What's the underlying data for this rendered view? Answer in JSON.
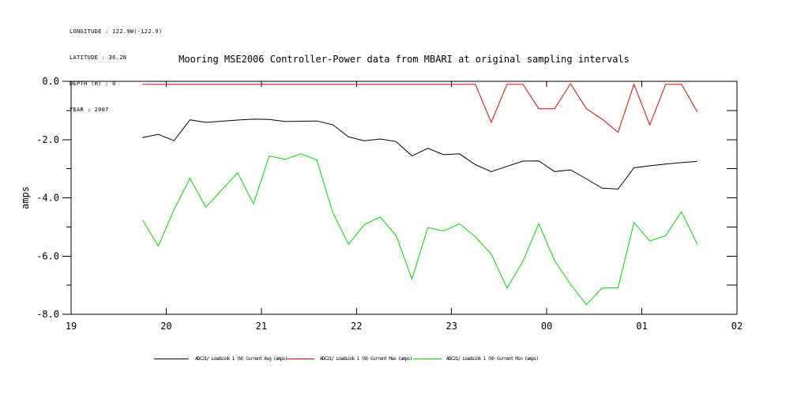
{
  "header": {
    "lines": [
      "LONGITUDE : 122.9W(-122.9)",
      "LATITUDE : 36.2N",
      "DEPTH (m) : 0",
      "YEAR : 2007"
    ]
  },
  "chart_data": {
    "type": "line",
    "title": "Mooring MSE2006 Controller-Power data from MBARI at original sampling intervals",
    "xlabel": "",
    "ylabel": "amps",
    "xlim": [
      19,
      26
    ],
    "ylim": [
      -8,
      0
    ],
    "grid": false,
    "legend_position": "bottom",
    "x_ticks": [
      {
        "value": 19,
        "label": "19"
      },
      {
        "value": 20,
        "label": "20"
      },
      {
        "value": 21,
        "label": "21"
      },
      {
        "value": 22,
        "label": "22"
      },
      {
        "value": 23,
        "label": "23"
      },
      {
        "value": 24,
        "label": "00"
      },
      {
        "value": 25,
        "label": "01"
      },
      {
        "value": 26,
        "label": "02"
      }
    ],
    "y_ticks": [
      {
        "value": 0,
        "label": "0.0"
      },
      {
        "value": -2,
        "label": "-2.0"
      },
      {
        "value": -4,
        "label": "-4.0"
      },
      {
        "value": -6,
        "label": "-6.0"
      },
      {
        "value": -8,
        "label": "-8.0"
      }
    ],
    "y_minor_ticks": [
      -1,
      -3,
      -5,
      -7
    ],
    "right_axis_ticks": [
      -1,
      -2,
      -3,
      -4,
      -5,
      -6,
      -7
    ],
    "x": [
      19.75,
      19.917,
      20.083,
      20.25,
      20.417,
      20.583,
      20.75,
      20.917,
      21.083,
      21.25,
      21.417,
      21.583,
      21.75,
      21.917,
      22.083,
      22.25,
      22.417,
      22.583,
      22.75,
      22.917,
      23.083,
      23.25,
      23.417,
      23.583,
      23.75,
      23.917,
      24.083,
      24.25,
      24.417,
      24.583,
      24.75,
      24.917,
      25.083,
      25.25,
      25.417,
      25.583
    ],
    "series": [
      {
        "key": "avg",
        "name": "ADC21/ Loadsink 1 (N) Current Avg (amps)",
        "color": "#000000",
        "values": [
          -1.93,
          -1.82,
          -2.04,
          -1.32,
          -1.41,
          -1.37,
          -1.33,
          -1.3,
          -1.31,
          -1.38,
          -1.37,
          -1.36,
          -1.49,
          -1.91,
          -2.04,
          -1.98,
          -2.07,
          -2.56,
          -2.3,
          -2.52,
          -2.49,
          -2.86,
          -3.1,
          -2.92,
          -2.74,
          -2.73,
          -3.1,
          -3.04,
          -3.35,
          -3.67,
          -3.7,
          -2.97,
          -2.9,
          -2.84,
          -2.79,
          -2.75
        ]
      },
      {
        "key": "max",
        "name": "ADC21/ Loadsink 1 (N) Current Max (amps)",
        "color": "#ee0000",
        "values": [
          -0.1,
          -0.1,
          -0.1,
          -0.1,
          -0.1,
          -0.1,
          -0.1,
          -0.1,
          -0.1,
          -0.1,
          -0.1,
          -0.1,
          -0.1,
          -0.1,
          -0.1,
          -0.1,
          -0.1,
          -0.1,
          -0.1,
          -0.1,
          -0.1,
          -0.1,
          -1.41,
          -0.1,
          -0.1,
          -0.94,
          -0.94,
          -0.08,
          -0.94,
          -1.3,
          -1.75,
          -0.1,
          -1.5,
          -0.1,
          -0.1,
          -1.05
        ]
      },
      {
        "key": "min",
        "name": "ADC21/ Loadsink 1 (N) Current Min (amps)",
        "color": "#00dd00",
        "values": [
          -4.76,
          -5.66,
          -4.4,
          -3.33,
          -4.32,
          -3.73,
          -3.14,
          -4.21,
          -2.56,
          -2.68,
          -2.49,
          -2.7,
          -4.5,
          -5.6,
          -4.92,
          -4.66,
          -5.3,
          -6.79,
          -5.02,
          -5.14,
          -4.89,
          -5.34,
          -5.93,
          -7.1,
          -6.18,
          -4.89,
          -6.16,
          -6.97,
          -7.67,
          -7.1,
          -7.09,
          -4.85,
          -5.48,
          -5.3,
          -4.48,
          -5.59
        ]
      }
    ]
  }
}
